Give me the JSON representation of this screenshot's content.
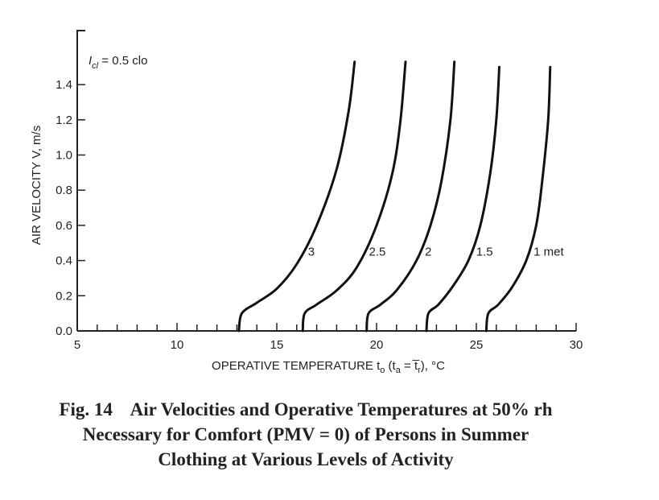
{
  "chart_data": {
    "type": "line",
    "title": "",
    "annotation": {
      "symbol": "I",
      "subscript": "cl",
      "text": " = 0.5 clo"
    },
    "xlabel": {
      "text": "OPERATIVE TEMPERATURE t",
      "sub_o": "o",
      "mid1": " (t",
      "sub_a": "a",
      "mid2": " = t",
      "bar_char": "̅",
      "sub_r": "r",
      "end": "), °C"
    },
    "ylabel": "AIR VELOCITY V, m/s",
    "xlim": [
      5,
      30
    ],
    "ylim": [
      0,
      1.5
    ],
    "x_ticks": [
      5,
      10,
      15,
      20,
      25,
      30
    ],
    "y_ticks": [
      "0.0",
      "0.2",
      "0.4",
      "0.6",
      "0.8",
      "1.0",
      "1.2",
      "1.4"
    ],
    "series": [
      {
        "name": "3",
        "x": [
          13.1,
          13.25,
          14.0,
          15.0,
          16.0,
          17.0,
          18.0,
          18.6,
          18.9
        ],
        "y": [
          0.0,
          0.1,
          0.16,
          0.24,
          0.38,
          0.6,
          0.92,
          1.25,
          1.53
        ]
      },
      {
        "name": "2.5",
        "x": [
          16.3,
          16.4,
          17.0,
          18.0,
          19.0,
          20.0,
          20.8,
          21.2,
          21.45
        ],
        "y": [
          0.0,
          0.1,
          0.15,
          0.23,
          0.36,
          0.6,
          0.9,
          1.2,
          1.53
        ]
      },
      {
        "name": "2",
        "x": [
          19.5,
          19.6,
          20.2,
          21.0,
          22.0,
          22.7,
          23.25,
          23.7,
          23.9
        ],
        "y": [
          0.0,
          0.1,
          0.15,
          0.23,
          0.4,
          0.6,
          0.85,
          1.2,
          1.53
        ]
      },
      {
        "name": "1.5",
        "x": [
          22.5,
          22.6,
          23.1,
          23.8,
          24.6,
          25.2,
          25.7,
          26.0,
          26.15
        ],
        "y": [
          0.0,
          0.1,
          0.15,
          0.25,
          0.4,
          0.6,
          0.9,
          1.2,
          1.5
        ]
      },
      {
        "name": "1 met",
        "x": [
          25.5,
          25.6,
          26.1,
          26.8,
          27.5,
          28.0,
          28.3,
          28.6,
          28.7
        ],
        "y": [
          0.0,
          0.1,
          0.15,
          0.25,
          0.4,
          0.6,
          0.85,
          1.2,
          1.5
        ]
      }
    ]
  },
  "caption": {
    "line1": "Fig. 14    Air Velocities and Operative Temperatures at 50% rh",
    "line2": "Necessary for Comfort (PMV = 0) of Persons in Summer",
    "line3": "Clothing at Various Levels of Activity"
  }
}
